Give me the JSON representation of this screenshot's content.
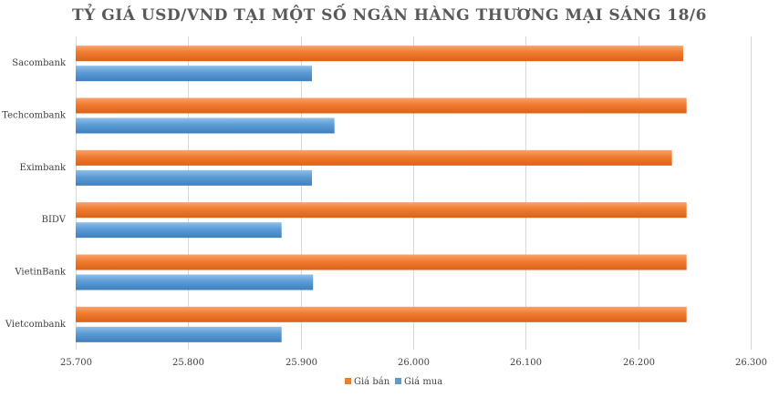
{
  "chart_data": {
    "type": "bar",
    "orientation": "horizontal",
    "title": "TỶ GIÁ USD/VND TẠI MỘT SỐ NGÂN HÀNG THƯƠNG MẠI SÁNG 18/6",
    "xlabel": "",
    "ylabel": "",
    "categories": [
      "Sacombank",
      "Techcombank",
      "Eximbank",
      "BIDV",
      "VietinBank",
      "Vietcombank"
    ],
    "series": [
      {
        "name": "Giá bán",
        "color": "#ed7d31",
        "values": [
          26240,
          26243,
          26230,
          26243,
          26243,
          26243
        ]
      },
      {
        "name": "Giá mua",
        "color": "#5b9bd5",
        "values": [
          25910,
          25930,
          25910,
          25883,
          25911,
          25883
        ]
      }
    ],
    "xlim": [
      25700,
      26300
    ],
    "xticks": [
      25700,
      25800,
      25900,
      26000,
      26100,
      26200,
      26300
    ],
    "xtick_labels": [
      "25.700",
      "25.800",
      "25.900",
      "26.000",
      "26.100",
      "26.200",
      "26.300"
    ],
    "grid": true,
    "legend_position": "bottom"
  }
}
